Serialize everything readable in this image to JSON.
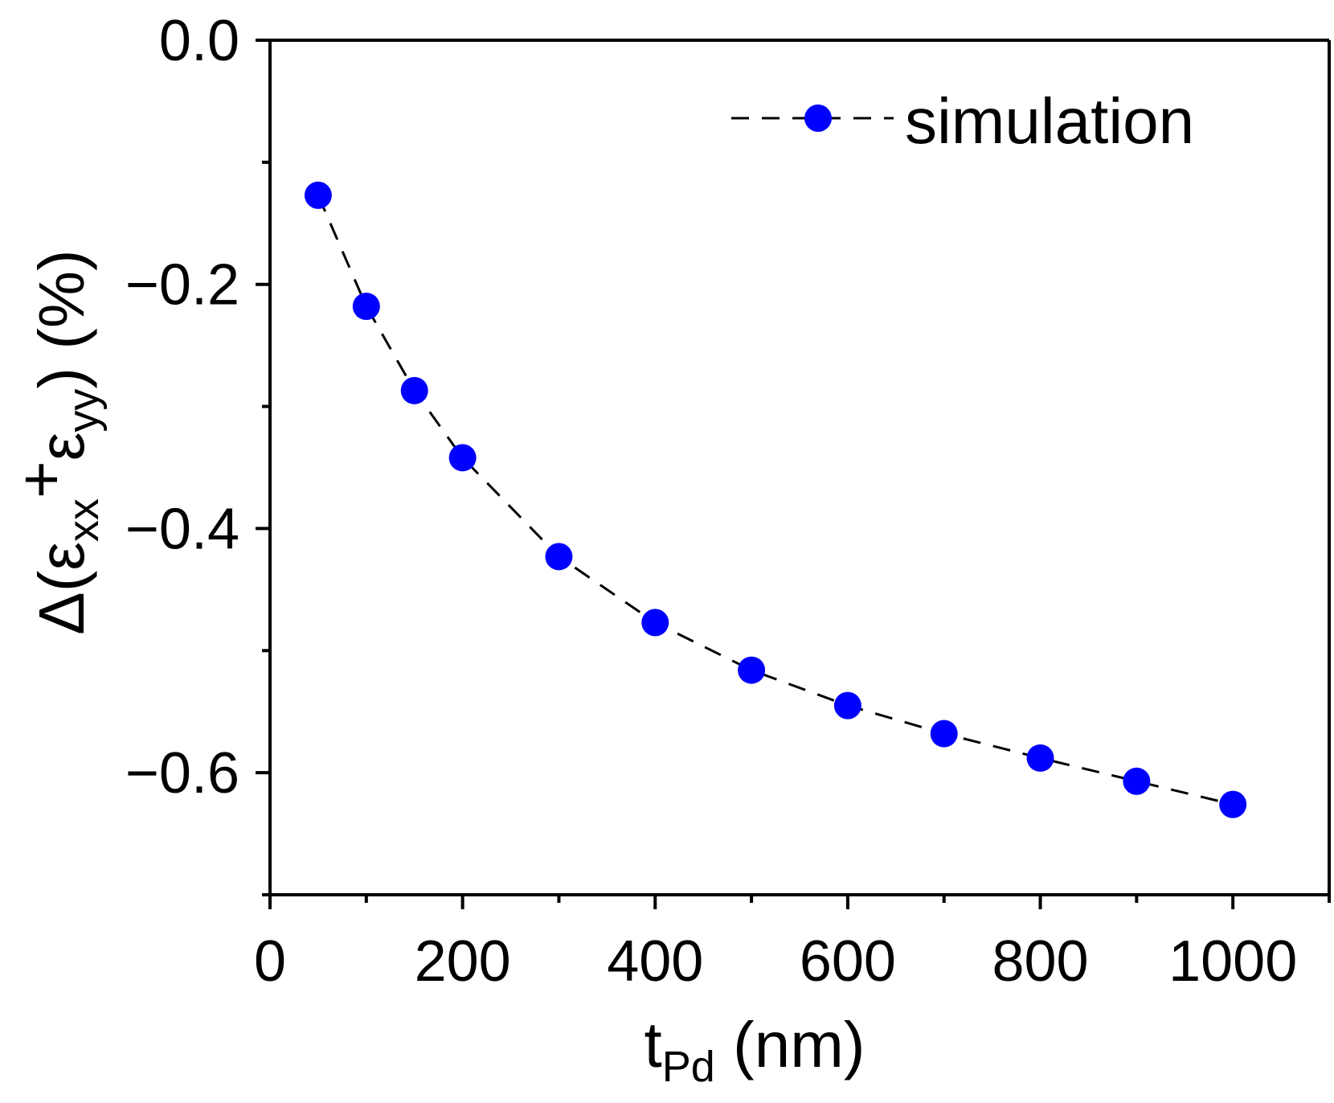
{
  "chart_data": {
    "type": "line",
    "title": "",
    "xlabel": {
      "main": "t",
      "sub": "Pd",
      "unit": " (nm)"
    },
    "ylabel": {
      "prefix": "Δ(ε",
      "sub1": "xx",
      "plus": "+",
      "eps": "ε",
      "sub2": "yy",
      "suffix": ") (%)"
    },
    "xlim": [
      0,
      1100
    ],
    "ylim": [
      -0.7,
      0.0
    ],
    "xticks": [
      0,
      200,
      400,
      600,
      800,
      1000
    ],
    "xtick_labels": [
      "0",
      "200",
      "400",
      "600",
      "800",
      "1000"
    ],
    "xminor": [
      100,
      300,
      500,
      700,
      900,
      1100
    ],
    "yticks": [
      0.0,
      -0.2,
      -0.4,
      -0.6
    ],
    "ytick_labels": [
      "0.0",
      "−0.2",
      "−0.4",
      "−0.6"
    ],
    "yminor": [
      -0.1,
      -0.3,
      -0.5,
      -0.7
    ],
    "legend": {
      "position": "top-right"
    },
    "series": [
      {
        "name": "simulation",
        "color": "#0000ff",
        "line_color": "#000000",
        "line_style": "dashed",
        "x": [
          50,
          100,
          150,
          200,
          300,
          400,
          500,
          600,
          700,
          800,
          900,
          1000
        ],
        "y": [
          -0.127,
          -0.218,
          -0.287,
          -0.342,
          -0.423,
          -0.477,
          -0.516,
          -0.545,
          -0.568,
          -0.588,
          -0.607,
          -0.626
        ]
      }
    ]
  }
}
